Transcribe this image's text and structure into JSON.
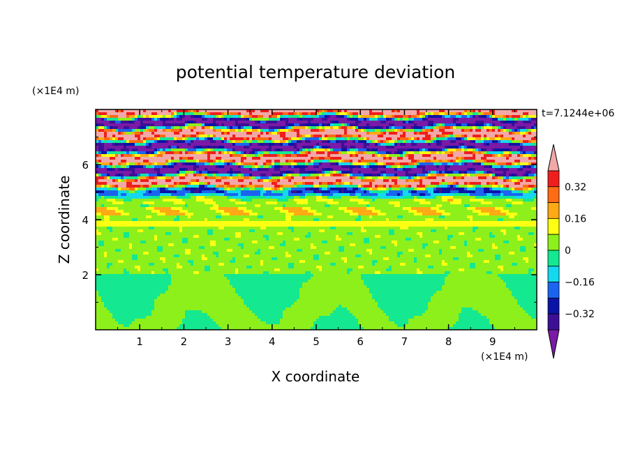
{
  "chart_data": {
    "type": "heatmap",
    "title": "potential temperature deviation",
    "xlabel": "X coordinate",
    "ylabel": "Z coordinate",
    "x_unit": "(×1E4 m)",
    "y_unit": "(×1E4 m)",
    "time_label": "t=7.1244e+06",
    "xlim": [
      0,
      10
    ],
    "ylim": [
      0,
      8
    ],
    "x_ticks": [
      1,
      2,
      3,
      4,
      5,
      6,
      7,
      8,
      9
    ],
    "y_ticks": [
      2,
      4,
      6
    ],
    "colorbar": {
      "levels": [
        -0.4,
        -0.32,
        -0.24,
        -0.16,
        -0.08,
        0,
        0.08,
        0.16,
        0.24,
        0.32,
        0.4
      ],
      "tick_labels": [
        "0.32",
        "0.16",
        "0",
        "−0.16",
        "−0.32"
      ],
      "tick_values": [
        0.32,
        0.16,
        0,
        -0.16,
        -0.32
      ],
      "colors": [
        "#7a1aa6",
        "#3d0f96",
        "#0a14a6",
        "#1a64f0",
        "#14d8f0",
        "#14e891",
        "#8ef01a",
        "#ffff14",
        "#ffaa14",
        "#ff6c14",
        "#f01e1e",
        "#f3a8a8"
      ]
    },
    "field_description": {
      "upper_layer_z": [
        4.6,
        8.0
      ],
      "upper_layer_values": [
        0.44,
        -0.44
      ],
      "mid_layer_z": [
        2.0,
        4.6
      ],
      "mid_layer_value": 0.04,
      "lower_layer_z": [
        0,
        2.0
      ],
      "lower_layer_values": [
        0.04,
        -0.04
      ]
    }
  }
}
